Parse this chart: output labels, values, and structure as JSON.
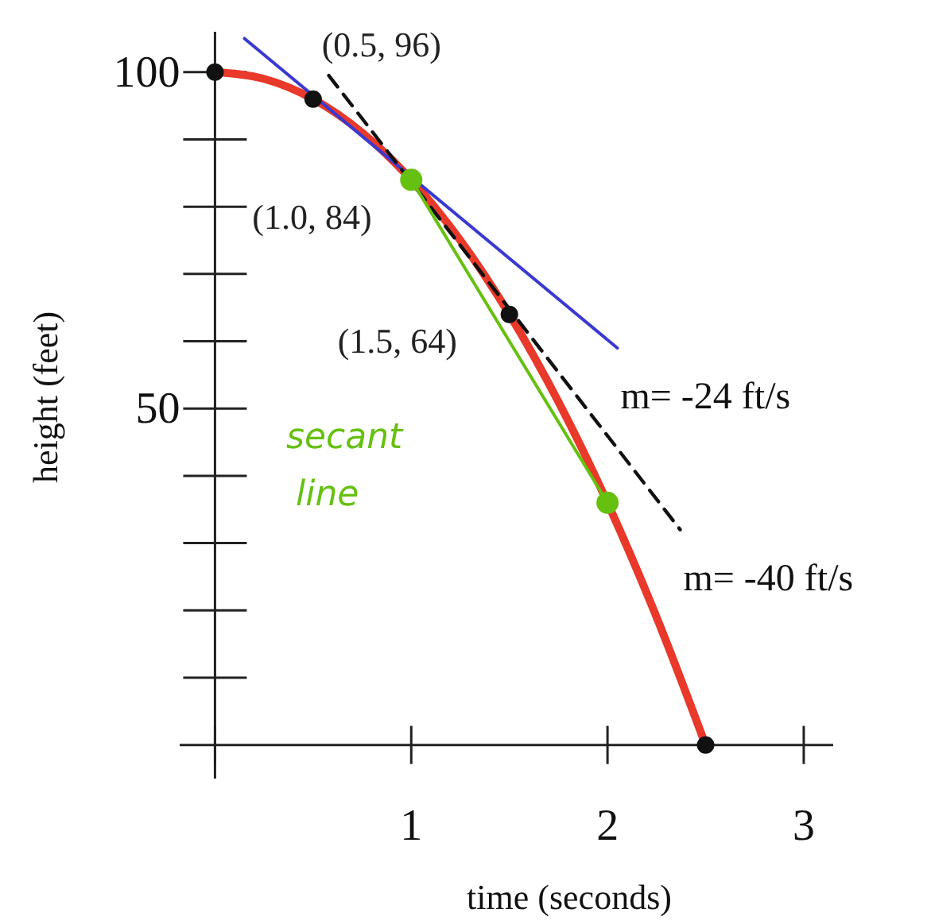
{
  "chart_data": {
    "type": "line",
    "xlabel": "time (seconds)",
    "ylabel": "height (feet)",
    "xlim": [
      -0.18,
      3.15
    ],
    "ylim": [
      -5,
      106
    ],
    "xticks": [
      {
        "value": 0,
        "label": null
      },
      1,
      2,
      3
    ],
    "yticks": [
      50,
      100
    ],
    "grid": false,
    "series": [
      {
        "color": "#e8392a",
        "x": [
          0,
          0.25,
          0.5,
          0.75,
          1,
          1.25,
          1.5,
          1.75,
          2,
          2.25,
          2.5
        ],
        "values": [
          100,
          99,
          96,
          91,
          84,
          75,
          64,
          51,
          36,
          19,
          0
        ],
        "marker": "none",
        "line_style": "solid"
      },
      {
        "type": "line",
        "color": "#3a3ad0",
        "x": [
          0.15,
          2.05
        ],
        "values": [
          105,
          59
        ],
        "marker": "none",
        "line_style": "solid"
      },
      {
        "type": "line",
        "color": "#111111",
        "x": [
          0.58,
          2.37
        ],
        "values": [
          99.5,
          32
        ],
        "marker": "none",
        "line_style": "dashed"
      },
      {
        "type": "scatter",
        "color": "#111111",
        "x": [
          0,
          0.5,
          1.5,
          2.5
        ],
        "values": [
          100,
          96,
          64,
          0
        ],
        "marker": "circle"
      },
      {
        "type": "line",
        "color": "#66c010",
        "x": [
          1,
          2
        ],
        "values": [
          84,
          36
        ],
        "marker": "circle",
        "line_style": "solid"
      }
    ],
    "annotations": [
      {
        "text": "(0.5, 96)",
        "x": 0.5,
        "y": 96
      },
      {
        "text": "(1.0, 84)",
        "x": 1,
        "y": 84
      },
      {
        "text": "(1.5, 64)",
        "x": 1.5,
        "y": 64
      },
      {
        "text": "m= -24  ft/s",
        "x": 2.05,
        "y": 59
      },
      {
        "text": "m= -40  ft/s",
        "x": 2.37,
        "y": 32
      },
      "secant line"
    ]
  }
}
